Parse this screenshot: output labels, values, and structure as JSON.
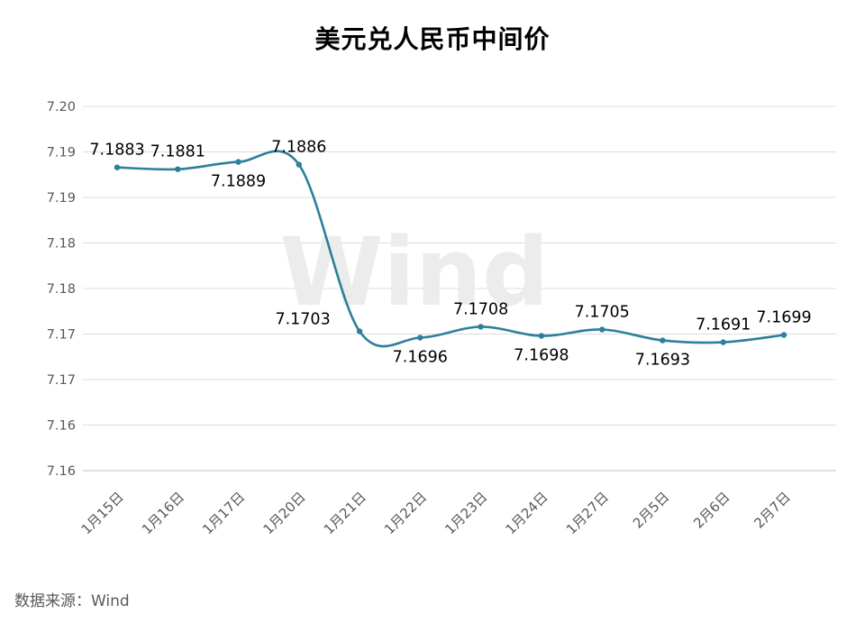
{
  "page": {
    "title": "美元兑人民币中间价",
    "source_note": "数据来源：Wind",
    "watermark": "Wind"
  },
  "chart_data": {
    "type": "line",
    "title": "美元兑人民币中间价",
    "categories": [
      "1月15日",
      "1月16日",
      "1月17日",
      "1月20日",
      "1月21日",
      "1月22日",
      "1月23日",
      "1月24日",
      "1月27日",
      "2月5日",
      "2月6日",
      "2月7日"
    ],
    "series": [
      {
        "name": "美元兑人民币中间价",
        "values": [
          7.1883,
          7.1881,
          7.1889,
          7.1886,
          7.1703,
          7.1696,
          7.1708,
          7.1698,
          7.1705,
          7.1693,
          7.1691,
          7.1699
        ]
      }
    ],
    "point_labels": [
      "7.1883",
      "7.1881",
      "7.1889",
      "7.1886",
      "7.1703",
      "7.1696",
      "7.1708",
      "7.1698",
      "7.1705",
      "7.1693",
      "7.1691",
      "7.1699"
    ],
    "label_positions": [
      "above",
      "above",
      "below",
      "above",
      "left",
      "below",
      "above",
      "below",
      "above",
      "below",
      "above",
      "above"
    ],
    "y_axis": {
      "min": 7.155,
      "max": 7.195,
      "tick_step": 0.005,
      "tick_labels": [
        "7.20",
        "7.19",
        "7.19",
        "7.18",
        "7.18",
        "7.17",
        "7.17",
        "7.16",
        "7.16"
      ]
    },
    "grid": true,
    "legend": "none",
    "smooth_line": true,
    "colors": {
      "line": "#2d7f9b",
      "grid": "#dcdcdc",
      "axis": "#bfbfbf",
      "tick_text": "#595959",
      "label_text": "#000000",
      "watermark": "#ececec"
    }
  }
}
